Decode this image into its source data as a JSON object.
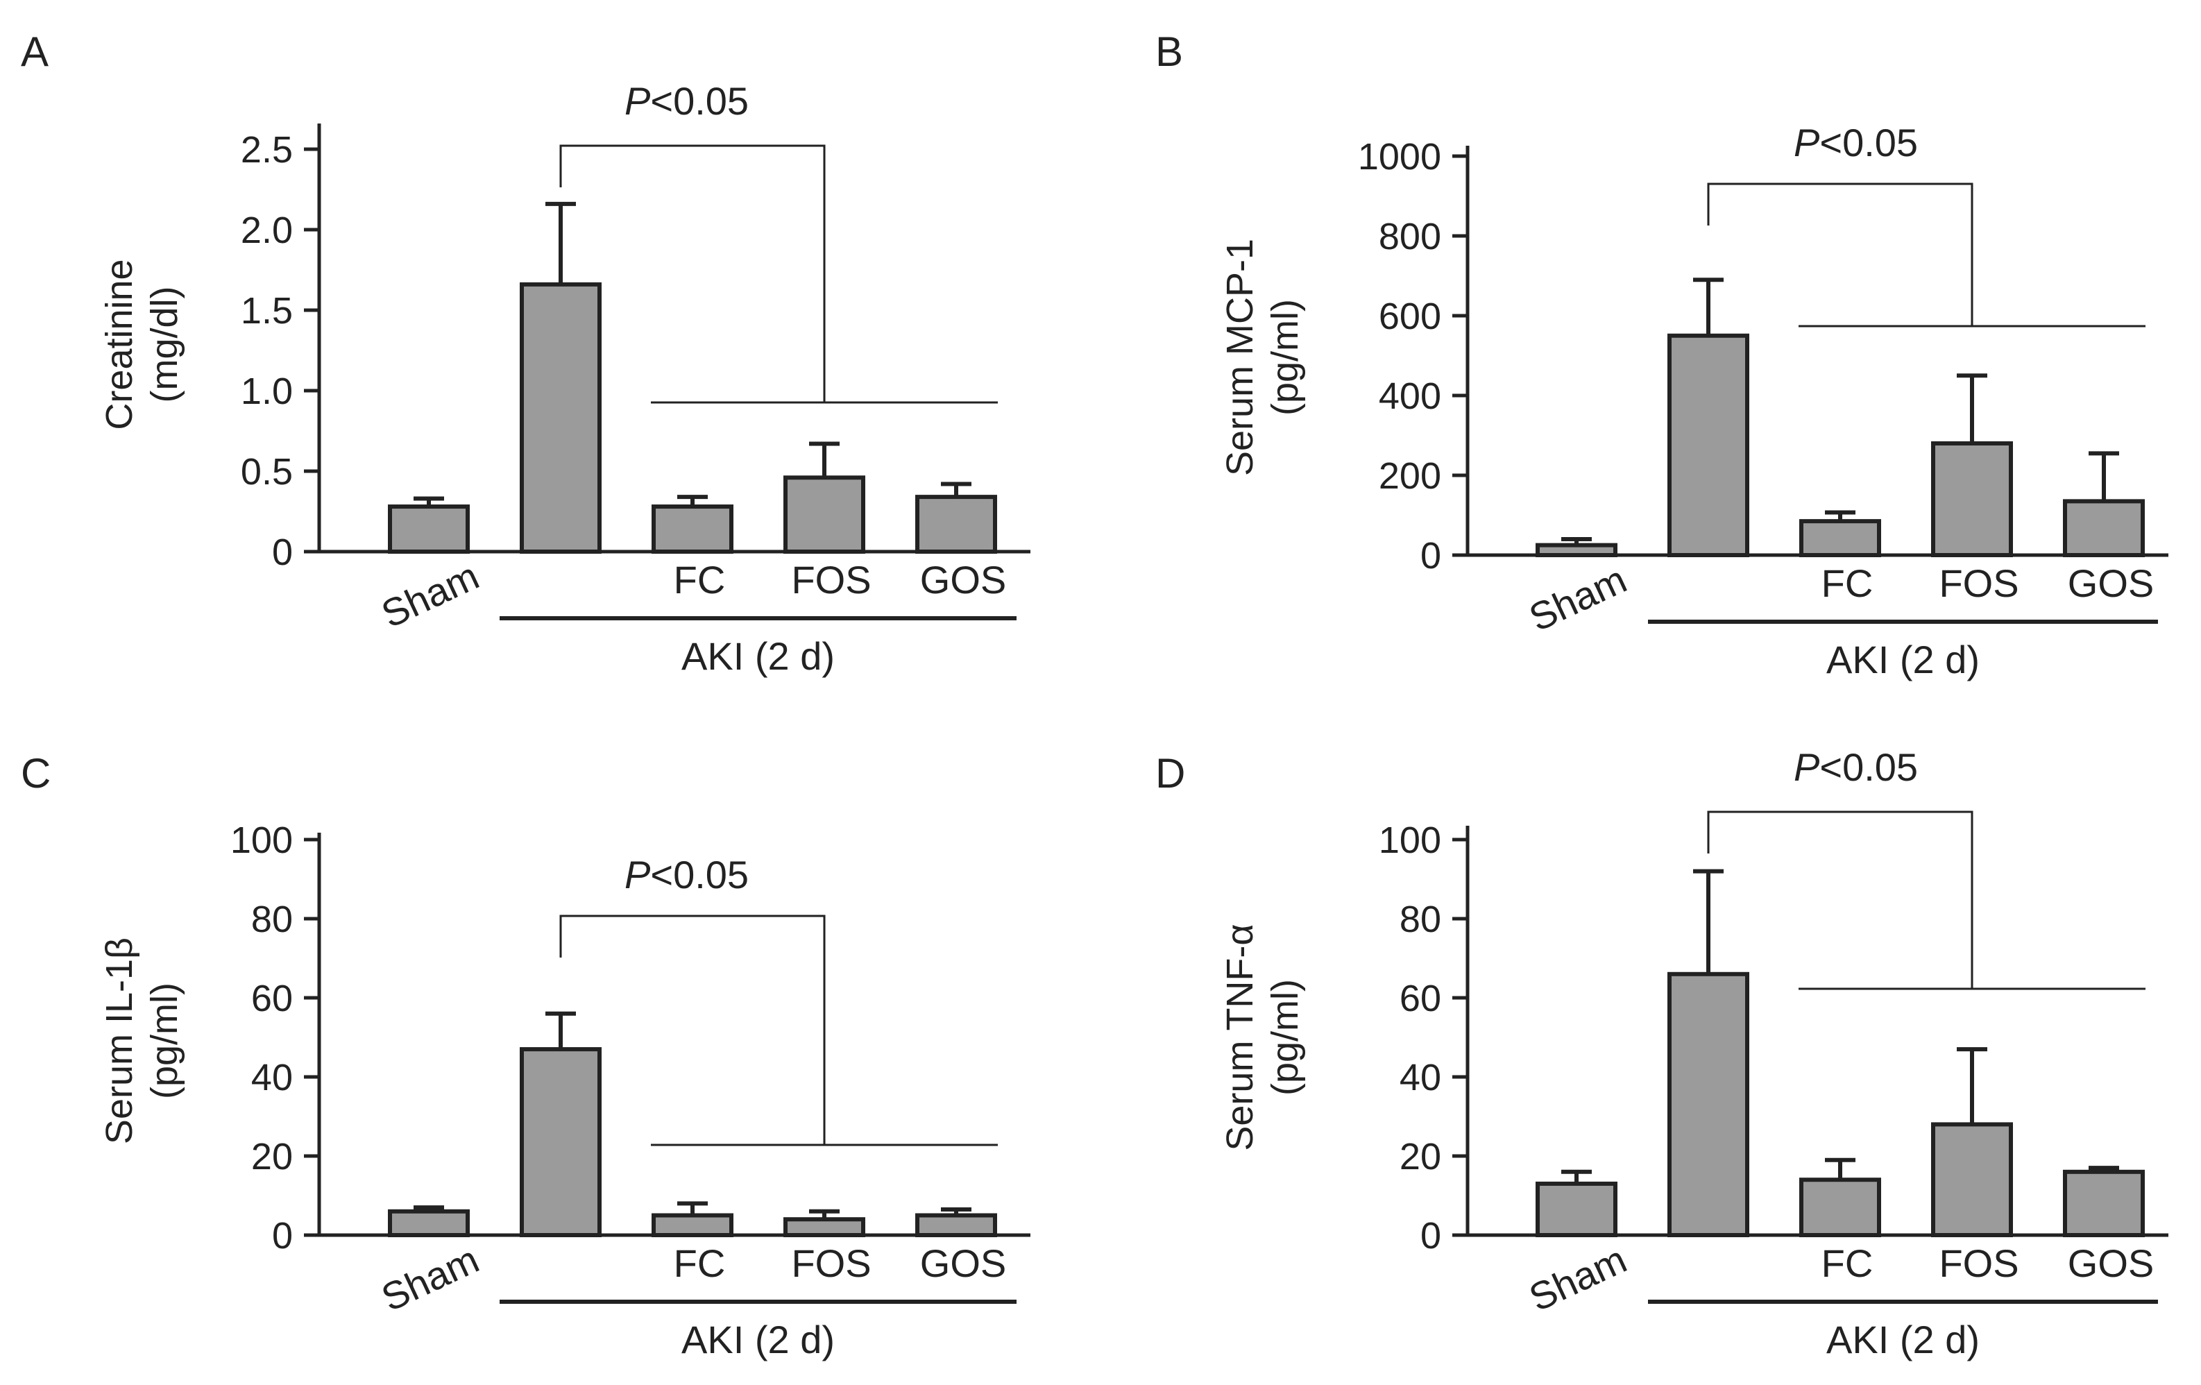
{
  "colors": {
    "bar_fill": "#9b9b9b",
    "stroke": "#222222",
    "background": "#ffffff"
  },
  "chart_data": [
    {
      "panel": "A",
      "type": "bar",
      "categories": [
        "Sham",
        "",
        "FC",
        "FOS",
        "GOS"
      ],
      "values": [
        0.28,
        1.66,
        0.28,
        0.46,
        0.34
      ],
      "errors": [
        0.05,
        0.5,
        0.06,
        0.21,
        0.08
      ],
      "ylabel_line1": "Creatinine",
      "ylabel_line2": "(mg/dl)",
      "ylim": [
        0,
        2.5
      ],
      "yticks": [
        "0",
        "0.5",
        "1.0",
        "1.5",
        "2.0",
        "2.5"
      ],
      "group_label": "AKI (2 d)",
      "significance": {
        "prefix": "P",
        "text": "<0.05",
        "from_bar": 1,
        "to_bars": [
          2,
          4
        ]
      }
    },
    {
      "panel": "B",
      "type": "bar",
      "categories": [
        "Sham",
        "",
        "FC",
        "FOS",
        "GOS"
      ],
      "values": [
        25,
        550,
        85,
        280,
        135
      ],
      "errors": [
        15,
        140,
        22,
        170,
        120
      ],
      "ylabel_line1": "Serum MCP-1",
      "ylabel_line2": "(pg/ml)",
      "ylim": [
        0,
        1000
      ],
      "yticks": [
        "0",
        "200",
        "400",
        "600",
        "800",
        "1000"
      ],
      "group_label": "AKI (2 d)",
      "significance": {
        "prefix": "P",
        "text": "<0.05",
        "from_bar": 1,
        "to_bars": [
          2,
          4
        ]
      }
    },
    {
      "panel": "C",
      "type": "bar",
      "categories": [
        "Sham",
        "",
        "FC",
        "FOS",
        "GOS"
      ],
      "values": [
        6,
        47,
        5,
        4,
        5
      ],
      "errors": [
        1,
        9,
        3,
        2,
        1.5
      ],
      "ylabel_line1": "Serum IL-1β",
      "ylabel_line2": "(pg/ml)",
      "ylim": [
        0,
        100
      ],
      "yticks": [
        "0",
        "20",
        "40",
        "60",
        "80",
        "100"
      ],
      "group_label": "AKI (2 d)",
      "significance": {
        "prefix": "P",
        "text": "<0.05",
        "from_bar": 1,
        "to_bars": [
          2,
          4
        ]
      }
    },
    {
      "panel": "D",
      "type": "bar",
      "categories": [
        "Sham",
        "",
        "FC",
        "FOS",
        "GOS"
      ],
      "values": [
        13,
        66,
        14,
        28,
        16
      ],
      "errors": [
        3,
        26,
        5,
        19,
        1
      ],
      "ylabel_line1": "Serum TNF-α",
      "ylabel_line2": "(pg/ml)",
      "ylim": [
        0,
        100
      ],
      "yticks": [
        "0",
        "20",
        "40",
        "60",
        "80",
        "100"
      ],
      "group_label": "AKI (2 d)",
      "significance": {
        "prefix": "P",
        "text": "<0.05",
        "from_bar": 1,
        "to_bars": [
          2,
          4
        ]
      }
    }
  ]
}
